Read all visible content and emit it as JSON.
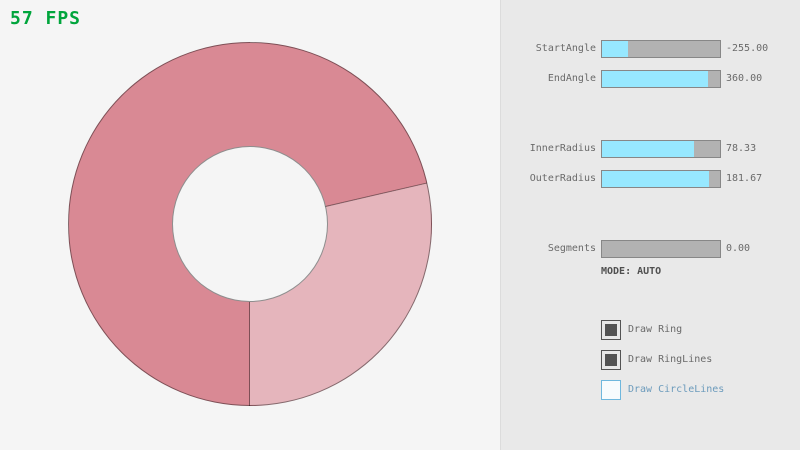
{
  "fps": {
    "text": "57 FPS"
  },
  "panel": {
    "sliders": [
      {
        "id": "start-angle",
        "label": "StartAngle",
        "value": "-255.00",
        "fill_pct": 21.7
      },
      {
        "id": "end-angle",
        "label": "EndAngle",
        "value": "360.00",
        "fill_pct": 90.0
      },
      {
        "id": "inner-radius",
        "label": "InnerRadius",
        "value": "78.33",
        "fill_pct": 78.3
      },
      {
        "id": "outer-radius",
        "label": "OuterRadius",
        "value": "181.67",
        "fill_pct": 90.8
      },
      {
        "id": "segments",
        "label": "Segments",
        "value": "0.00",
        "fill_pct": 0
      }
    ],
    "mode_text": "MODE: AUTO",
    "checkboxes": [
      {
        "id": "draw-ring",
        "label": "Draw Ring",
        "checked": true
      },
      {
        "id": "draw-ring-lines",
        "label": "Draw RingLines",
        "checked": true
      },
      {
        "id": "draw-circle-lines",
        "label": "Draw CircleLines",
        "checked": false
      }
    ]
  },
  "colors": {
    "background": "#f5f5f5",
    "panel_bg": "#e9e9e9",
    "panel_border": "#dcdcdc",
    "fps_green": "#00a53c",
    "ring_dark": "#d98994",
    "ring_light": "#e5b5bc",
    "ring_line": "rgba(0,0,0,0.42)",
    "slider_fill": "#97e8ff",
    "slider_track": "#b2b2b2",
    "slider_border": "#878787",
    "label_text": "#6a6a6a",
    "mode_text": "#4f4f4f",
    "check_dark": "#545454",
    "check_blue_border": "#6fb7dd",
    "check_blue_text": "#6c9bbc"
  }
}
